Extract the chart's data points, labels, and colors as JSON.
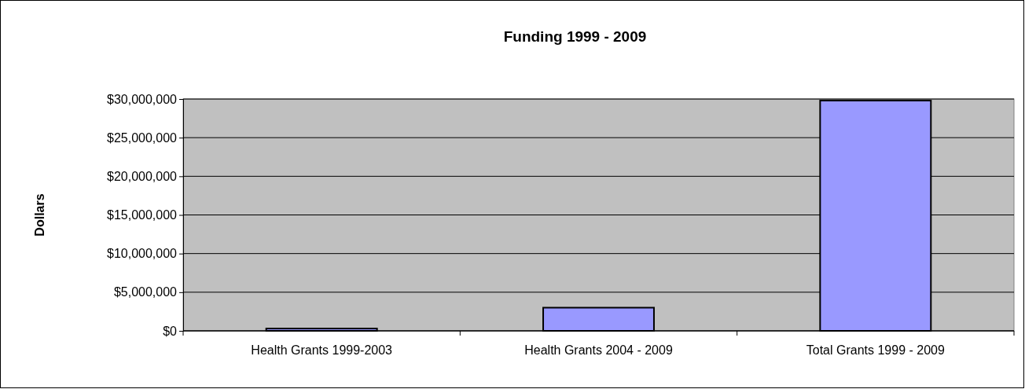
{
  "chart_data": {
    "type": "bar",
    "title": "Funding 1999 - 2009",
    "ylabel": "Dollars",
    "categories": [
      "Health Grants 1999-2003",
      "Health Grants 2004 - 2009",
      "Total Grants 1999 - 2009"
    ],
    "values": [
      300000,
      3000000,
      29800000
    ],
    "color": "#9999ff",
    "ylim": [
      0,
      30000000
    ],
    "yticks": [
      {
        "value": 0,
        "label": "$0"
      },
      {
        "value": 5000000,
        "label": "$5,000,000"
      },
      {
        "value": 10000000,
        "label": "$10,000,000"
      },
      {
        "value": 15000000,
        "label": "$15,000,000"
      },
      {
        "value": 20000000,
        "label": "$20,000,000"
      },
      {
        "value": 25000000,
        "label": "$25,000,000"
      },
      {
        "value": 30000000,
        "label": "$30,000,000"
      }
    ],
    "grid": "y"
  }
}
